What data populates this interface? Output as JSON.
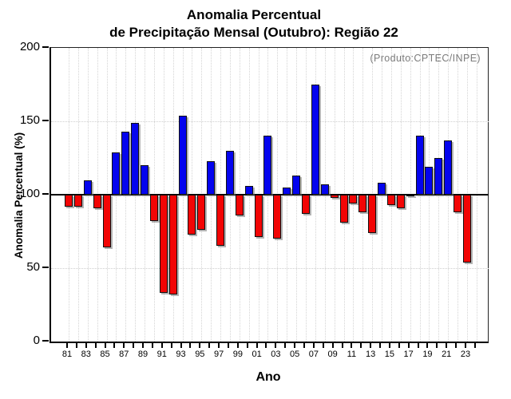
{
  "title": {
    "line1": "Anomalia Percentual",
    "line2": "de Precipitação Mensal (Outubro): Região 22"
  },
  "annotation": "(Produto:CPTEC/INPE)",
  "axes": {
    "y_label": "Anomalia Percentual (%)",
    "x_label": "Ano",
    "y_ticks": [
      0,
      50,
      100,
      150,
      200
    ],
    "x_labeled_years": [
      1981,
      1983,
      1985,
      1987,
      1989,
      1991,
      1993,
      1995,
      1997,
      1999,
      2001,
      2003,
      2005,
      2007,
      2009,
      2011,
      2013,
      2015,
      2017,
      2019,
      2021,
      2023
    ],
    "x_tick_labels": [
      "81",
      "83",
      "85",
      "87",
      "89",
      "91",
      "93",
      "95",
      "97",
      "99",
      "01",
      "03",
      "05",
      "07",
      "09",
      "11",
      "13",
      "15",
      "17",
      "19",
      "21",
      "23"
    ]
  },
  "colors": {
    "above_baseline": "#0404ee",
    "below_baseline": "#f20505",
    "bar_border": "#101010",
    "grid": "#d4d4d4",
    "annotation_text": "#7b7b7b"
  },
  "chart_data": {
    "type": "bar",
    "title": "Anomalia Percentual de Precipitação Mensal (Outubro): Região 22",
    "xlabel": "Ano",
    "ylabel": "Anomalia Percentual (%)",
    "ylim": [
      0,
      200
    ],
    "baseline": 100,
    "grid": "dotted",
    "legend_position": "none",
    "annotation": "(Produto:CPTEC/INPE)",
    "years": [
      1981,
      1982,
      1983,
      1984,
      1985,
      1986,
      1987,
      1988,
      1989,
      1990,
      1991,
      1992,
      1993,
      1994,
      1995,
      1996,
      1997,
      1998,
      1999,
      2000,
      2001,
      2002,
      2003,
      2004,
      2005,
      2006,
      2007,
      2008,
      2009,
      2010,
      2011,
      2012,
      2013,
      2014,
      2015,
      2016,
      2017,
      2018,
      2019,
      2020,
      2021,
      2022,
      2023
    ],
    "values": [
      92,
      92,
      110,
      91,
      64,
      129,
      143,
      149,
      120,
      82,
      33,
      32,
      154,
      73,
      76,
      123,
      65,
      130,
      86,
      106,
      71,
      140,
      70,
      105,
      113,
      87,
      175,
      107,
      98,
      81,
      94,
      88,
      74,
      108,
      93,
      91,
      99,
      140,
      119,
      125,
      137,
      88,
      54
    ],
    "series_note": "values >= 100 drawn blue (above baseline), values < 100 drawn red (below baseline)"
  }
}
